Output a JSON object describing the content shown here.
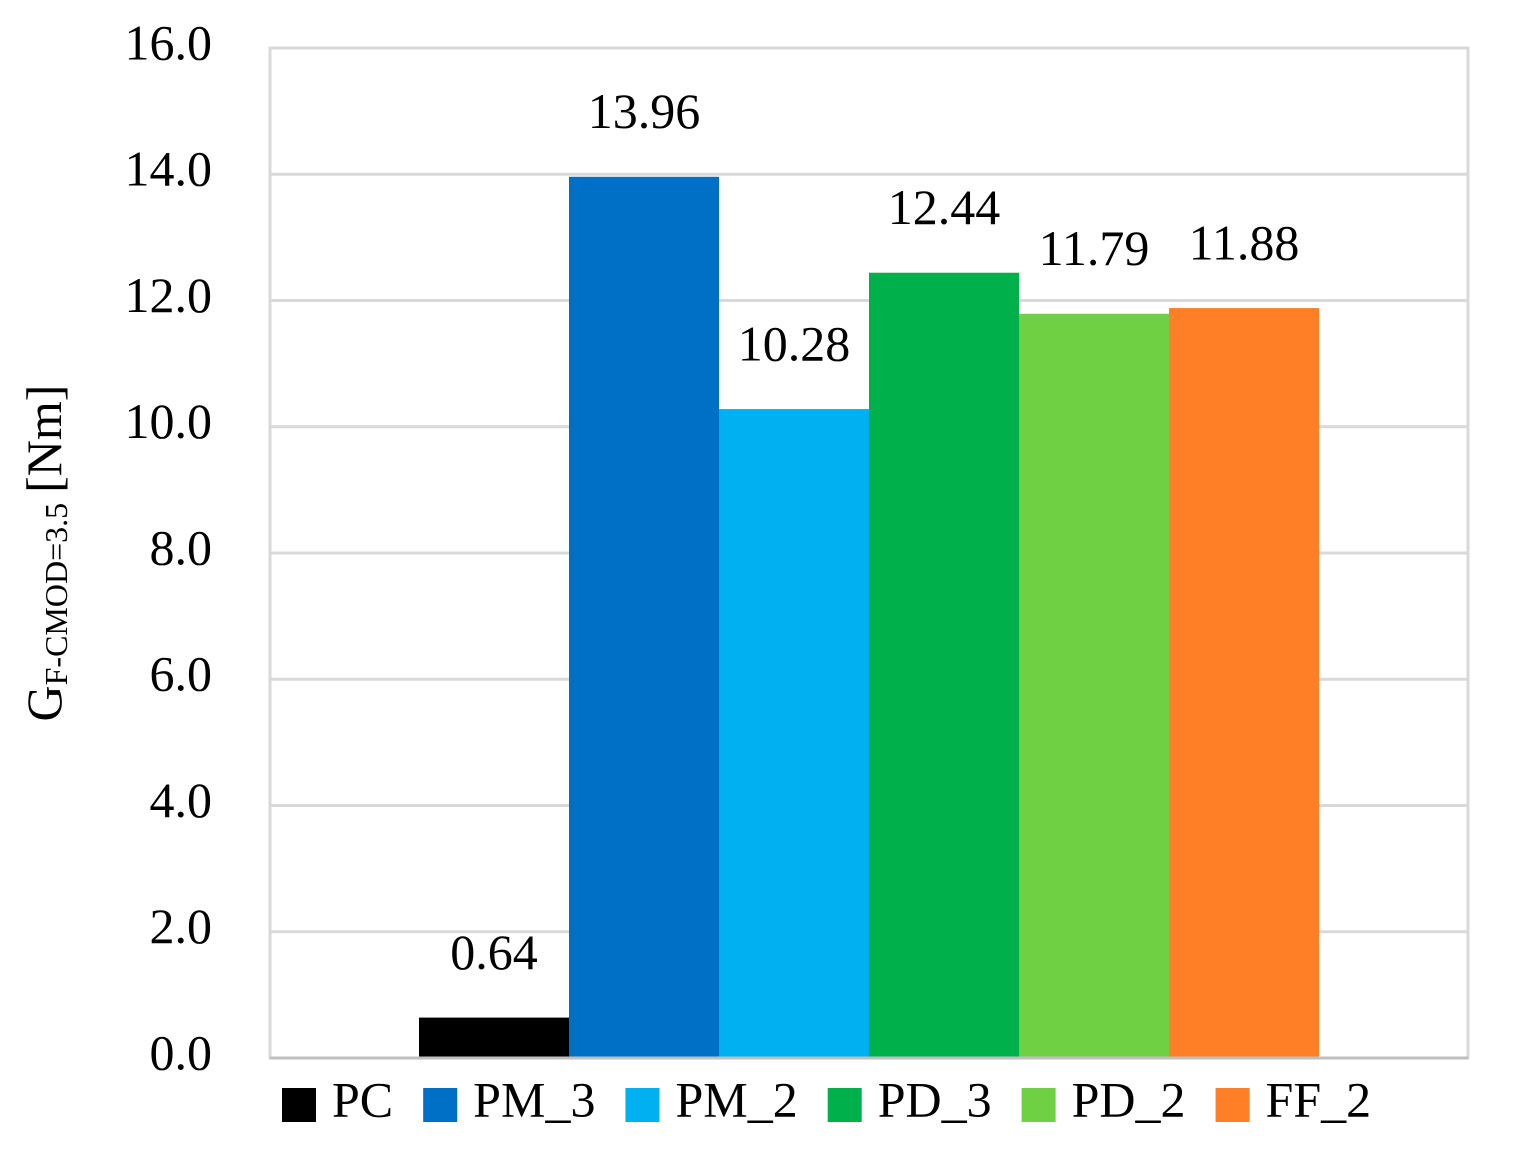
{
  "chart_data": {
    "type": "bar",
    "ylabel": {
      "main": "G",
      "sub": "F-CMOD=3.5",
      "unit": "[Nm]"
    },
    "categories": [
      null
    ],
    "series": [
      {
        "name": "PC",
        "color": "#000000",
        "values": [
          0.64
        ]
      },
      {
        "name": "PM_3",
        "color": "#0070c6",
        "values": [
          13.96
        ]
      },
      {
        "name": "PM_2",
        "color": "#00b0f0",
        "values": [
          10.28
        ]
      },
      {
        "name": "PD_3",
        "color": "#00b04a",
        "values": [
          12.44
        ]
      },
      {
        "name": "PD_2",
        "color": "#70d044",
        "values": [
          11.79
        ]
      },
      {
        "name": "FF_2",
        "color": "#ff7f27",
        "values": [
          11.88
        ]
      }
    ],
    "ylim": [
      0,
      16
    ],
    "yticks": [
      {
        "value": 0,
        "label": "0.0"
      },
      {
        "value": 2,
        "label": "2.0"
      },
      {
        "value": 4,
        "label": "4.0"
      },
      {
        "value": 6,
        "label": "6.0"
      },
      {
        "value": 8,
        "label": "8.0"
      },
      {
        "value": 10,
        "label": "10.0"
      },
      {
        "value": 12,
        "label": "12.0"
      },
      {
        "value": 14,
        "label": "14.0"
      },
      {
        "value": 16,
        "label": "16.0"
      }
    ],
    "grid": true,
    "legend": "bottom"
  }
}
